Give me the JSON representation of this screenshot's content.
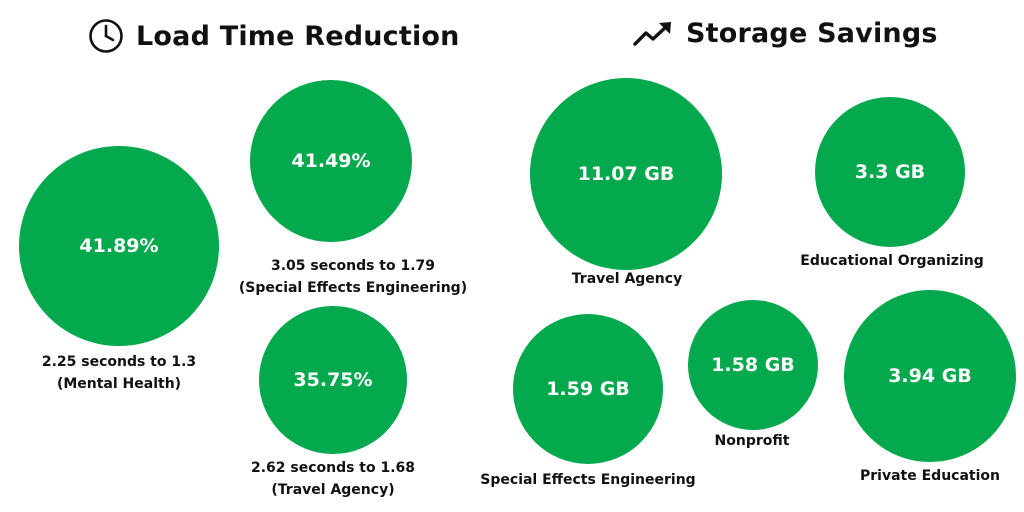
{
  "chart_data": [
    {
      "type": "bubble",
      "title": "Load Time Reduction",
      "icon": "clock-icon",
      "color": "#04a84d",
      "items": [
        {
          "value_label": "41.89%",
          "value": 41.89,
          "caption": "2.25 seconds to 1.3",
          "category": "(Mental Health)"
        },
        {
          "value_label": "41.49%",
          "value": 41.49,
          "caption": "3.05 seconds to 1.79",
          "category": "(Special Effects Engineering)"
        },
        {
          "value_label": "35.75%",
          "value": 35.75,
          "caption": "2.62 seconds to 1.68",
          "category": "(Travel Agency)"
        }
      ]
    },
    {
      "type": "bubble",
      "title": "Storage Savings",
      "icon": "trending-up-icon",
      "color": "#04a84d",
      "items": [
        {
          "value_label": "11.07 GB",
          "value": 11.07,
          "category": "Travel Agency"
        },
        {
          "value_label": "3.3 GB",
          "value": 3.3,
          "category": "Educational Organizing"
        },
        {
          "value_label": "1.59 GB",
          "value": 1.59,
          "category": "Special Effects Engineering"
        },
        {
          "value_label": "1.58 GB",
          "value": 1.58,
          "category": "Nonprofit"
        },
        {
          "value_label": "3.94 GB",
          "value": 3.94,
          "category": "Private Education"
        }
      ]
    }
  ]
}
